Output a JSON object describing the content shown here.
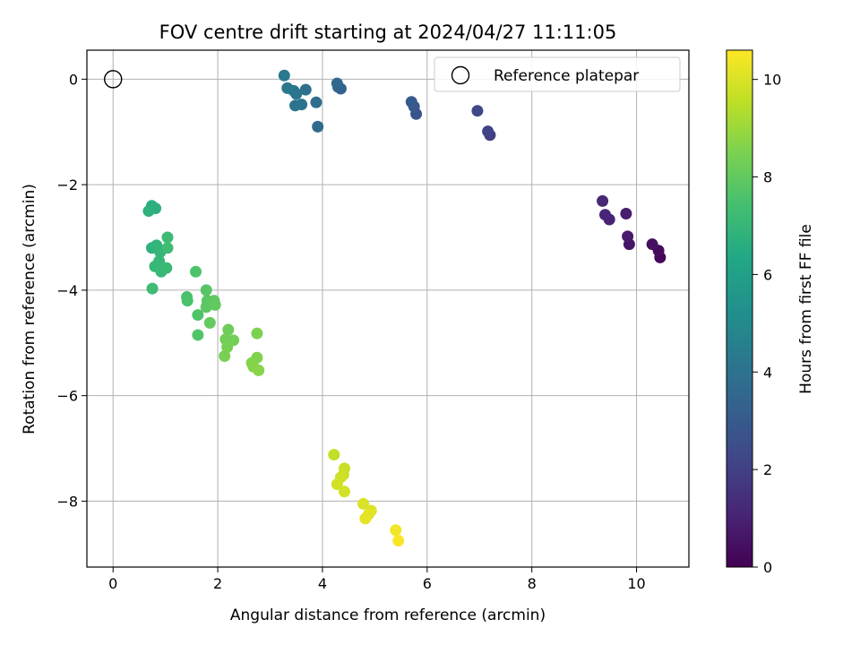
{
  "chart_data": {
    "type": "scatter",
    "title": "FOV centre drift starting at 2024/04/27 11:11:05",
    "xlabel": "Angular distance from reference (arcmin)",
    "ylabel": "Rotation from reference (arcmin)",
    "colorbar_label": "Hours from first FF file",
    "colormap": "viridis",
    "xlim": [
      -0.5,
      11
    ],
    "ylim": [
      -9.25,
      0.55
    ],
    "xticks": [
      0,
      2,
      4,
      6,
      8,
      10
    ],
    "xtick_labels": [
      "0",
      "2",
      "4",
      "6",
      "8",
      "10"
    ],
    "yticks": [
      0,
      -2,
      -4,
      -6,
      -8
    ],
    "ytick_labels": [
      "0",
      "−2",
      "−4",
      "−6",
      "−8"
    ],
    "colorbar_range": [
      0,
      10.6
    ],
    "colorbar_ticks": [
      0,
      2,
      4,
      6,
      8,
      10
    ],
    "colorbar_tick_labels": [
      "0",
      "2",
      "4",
      "6",
      "8",
      "10"
    ],
    "grid": true,
    "legend": {
      "position": "top-right",
      "label": "Reference platepar"
    },
    "reference_point": {
      "x": 0,
      "y": 0
    },
    "series": [
      {
        "points": [
          [
            10.45,
            -3.38,
            0.15
          ],
          [
            10.42,
            -3.25,
            0.3
          ],
          [
            10.3,
            -3.13,
            0.45
          ],
          [
            9.86,
            -3.13,
            0.6
          ],
          [
            9.83,
            -2.98,
            0.75
          ],
          [
            9.8,
            -2.55,
            0.85
          ],
          [
            9.48,
            -2.66,
            1.0
          ],
          [
            9.4,
            -2.57,
            1.1
          ],
          [
            9.35,
            -2.31,
            1.2
          ],
          [
            7.2,
            -1.06,
            2.0
          ],
          [
            7.16,
            -0.99,
            2.1
          ],
          [
            6.96,
            -0.6,
            2.3
          ],
          [
            5.79,
            -0.66,
            2.7
          ],
          [
            5.75,
            -0.52,
            2.85
          ],
          [
            5.7,
            -0.43,
            3.0
          ],
          [
            4.35,
            -0.18,
            3.3
          ],
          [
            4.3,
            -0.15,
            3.4
          ],
          [
            4.28,
            -0.08,
            3.5
          ],
          [
            3.91,
            -0.9,
            3.7
          ],
          [
            3.88,
            -0.44,
            3.8
          ],
          [
            3.68,
            -0.2,
            3.9
          ],
          [
            3.6,
            -0.48,
            4.0
          ],
          [
            3.48,
            -0.5,
            4.05
          ],
          [
            3.5,
            -0.28,
            4.1
          ],
          [
            3.45,
            -0.22,
            4.15
          ],
          [
            3.33,
            -0.17,
            4.2
          ],
          [
            3.27,
            0.07,
            4.25
          ],
          [
            0.74,
            -2.4,
            6.6
          ],
          [
            0.81,
            -2.45,
            6.7
          ],
          [
            0.68,
            -2.5,
            6.75
          ],
          [
            0.74,
            -3.2,
            6.8
          ],
          [
            0.83,
            -3.15,
            6.9
          ],
          [
            0.9,
            -3.28,
            6.95
          ],
          [
            0.88,
            -3.45,
            7.0
          ],
          [
            0.8,
            -3.55,
            7.05
          ],
          [
            0.92,
            -3.65,
            7.1
          ],
          [
            1.02,
            -3.58,
            7.15
          ],
          [
            1.04,
            -3.0,
            7.2
          ],
          [
            1.04,
            -3.2,
            7.25
          ],
          [
            0.75,
            -3.97,
            7.3
          ],
          [
            1.41,
            -4.13,
            7.5
          ],
          [
            1.42,
            -4.2,
            7.55
          ],
          [
            1.58,
            -3.65,
            7.6
          ],
          [
            1.62,
            -4.47,
            7.65
          ],
          [
            1.62,
            -4.85,
            7.7
          ],
          [
            1.78,
            -4.0,
            7.8
          ],
          [
            1.8,
            -4.2,
            7.85
          ],
          [
            1.78,
            -4.32,
            7.9
          ],
          [
            1.93,
            -4.2,
            7.95
          ],
          [
            1.95,
            -4.28,
            8.0
          ],
          [
            1.85,
            -4.62,
            8.05
          ],
          [
            2.2,
            -4.75,
            8.2
          ],
          [
            2.15,
            -4.93,
            8.3
          ],
          [
            2.3,
            -4.95,
            8.35
          ],
          [
            2.18,
            -5.08,
            8.4
          ],
          [
            2.13,
            -5.25,
            8.45
          ],
          [
            2.75,
            -4.82,
            8.5
          ],
          [
            2.75,
            -5.28,
            8.55
          ],
          [
            2.65,
            -5.38,
            8.6
          ],
          [
            2.68,
            -5.45,
            8.65
          ],
          [
            2.78,
            -5.52,
            8.7
          ],
          [
            4.22,
            -7.12,
            9.6
          ],
          [
            4.42,
            -7.38,
            9.7
          ],
          [
            4.4,
            -7.5,
            9.75
          ],
          [
            4.35,
            -7.55,
            9.8
          ],
          [
            4.28,
            -7.68,
            9.85
          ],
          [
            4.42,
            -7.82,
            9.9
          ],
          [
            4.78,
            -8.05,
            10.0
          ],
          [
            4.93,
            -8.18,
            10.1
          ],
          [
            4.88,
            -8.25,
            10.15
          ],
          [
            4.82,
            -8.33,
            10.2
          ],
          [
            5.4,
            -8.55,
            10.4
          ],
          [
            5.45,
            -8.75,
            10.5
          ]
        ]
      }
    ]
  }
}
